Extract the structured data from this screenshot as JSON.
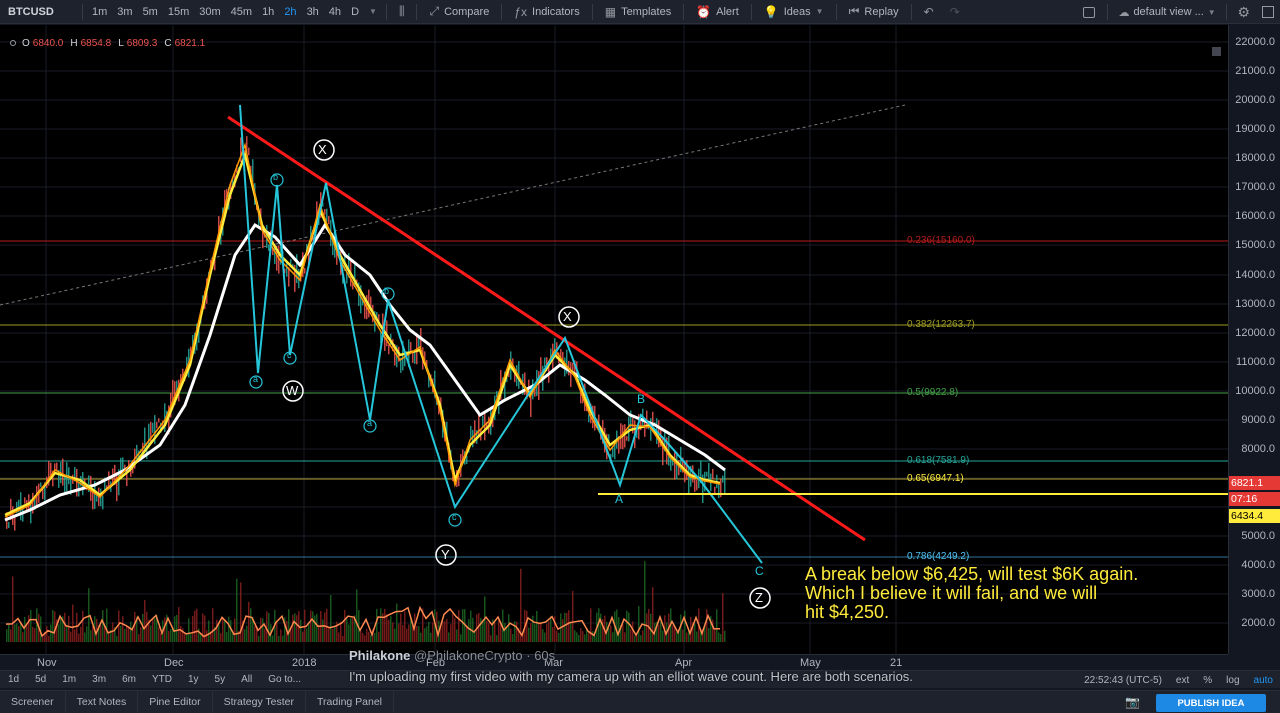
{
  "toolbar": {
    "symbol": "BTCUSD",
    "timeframes": [
      "1m",
      "3m",
      "5m",
      "15m",
      "30m",
      "45m",
      "1h",
      "2h",
      "3h",
      "4h",
      "D"
    ],
    "active_timeframe": "2h",
    "buttons": {
      "compare": "Compare",
      "indicators": "Indicators",
      "templates": "Templates",
      "alert": "Alert",
      "ideas": "Ideas",
      "replay": "Replay"
    },
    "view": "default view ..."
  },
  "ohlc": {
    "o_label": "O",
    "o": "6840.0",
    "h_label": "H",
    "h": "6854.8",
    "l_label": "L",
    "l": "6809.3",
    "c_label": "C",
    "c": "6821.1"
  },
  "price_axis": {
    "labels": [
      "22000.0",
      "21000.0",
      "20000.0",
      "19000.0",
      "18000.0",
      "17000.0",
      "16000.0",
      "15000.0",
      "14000.0",
      "13000.0",
      "12000.0",
      "11000.0",
      "10000.0",
      "9000.0",
      "8000.0",
      "5000.0",
      "4000.0",
      "3000.0",
      "2000.0"
    ],
    "current_price": "6821.1",
    "countdown": "07:16",
    "level_tag": "6434.4"
  },
  "time_axis": {
    "labels": [
      "Nov",
      "Dec",
      "2018",
      "Feb",
      "Mar",
      "Apr",
      "May",
      "21"
    ]
  },
  "fib_levels": [
    {
      "label": "0.236(15160.0)",
      "color": "#b71c1c"
    },
    {
      "label": "0.382(12263.7)",
      "color": "#9e9d24"
    },
    {
      "label": "0.5(9922.8)",
      "color": "#43a047"
    },
    {
      "label": "0.618(7581.9)",
      "color": "#26a69a"
    },
    {
      "label": "0.65(6947.1)",
      "color": "#ffeb3b"
    },
    {
      "label": "0.786(4249.2)",
      "color": "#4fc3f7"
    }
  ],
  "wave_labels": {
    "big": [
      "X",
      "W",
      "X",
      "Y",
      "Z"
    ],
    "small": [
      "a",
      "b",
      "c",
      "b",
      "a",
      "c",
      "B",
      "A",
      "C"
    ]
  },
  "annotation": {
    "line1": "A break below $6,425, will test $6K again.",
    "line2": "Which I believe it will fail, and we will",
    "line3": "hit $4,250."
  },
  "caption": {
    "user": "Philakone",
    "handle": "@PhilakoneCrypto",
    "time": "· 60s",
    "text": "I'm uploading my first video with my camera up with an elliot wave count. Here are both scenarios."
  },
  "range_bar": {
    "ranges": [
      "1d",
      "5d",
      "1m",
      "3m",
      "6m",
      "YTD",
      "1y",
      "5y",
      "All",
      "Go to..."
    ],
    "clock": "22:52:43 (UTC-5)",
    "options": [
      "ext",
      "%",
      "log",
      "auto"
    ]
  },
  "panel_bar": {
    "tabs": [
      "Screener",
      "Text Notes",
      "Pine Editor",
      "Strategy Tester",
      "Trading Panel"
    ],
    "publish": "PUBLISH IDEA"
  }
}
